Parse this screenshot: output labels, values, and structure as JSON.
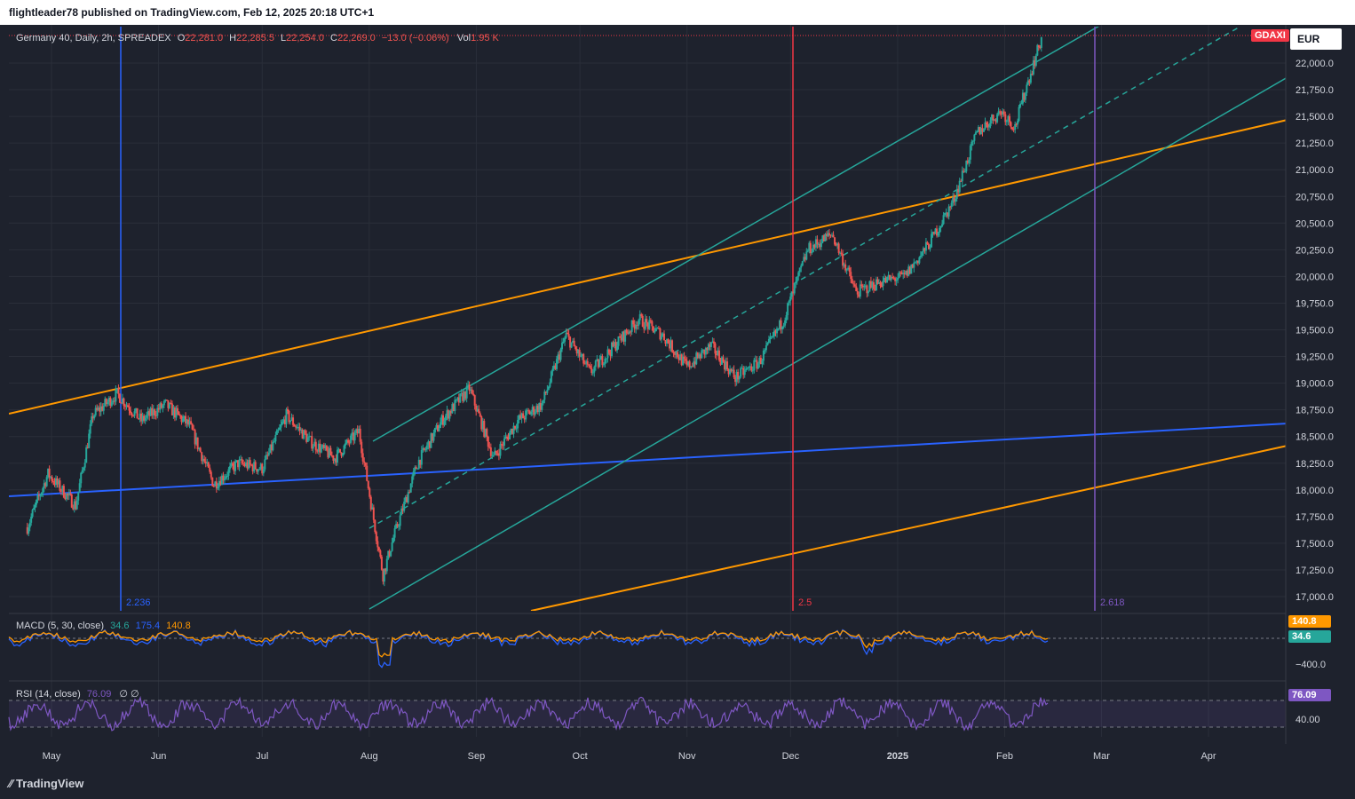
{
  "header": {
    "attribution": "flightleader78 published on TradingView.com, Feb 12, 2025 20:18 UTC+1"
  },
  "footer": {
    "brand": "TradingView"
  },
  "legend": {
    "symbol": "Germany 40, Daily, 2h, SPREADEX",
    "o_label": "O",
    "o_value": "22,281.0",
    "h_label": "H",
    "h_value": "22,285.5",
    "l_label": "L",
    "l_value": "22,254.0",
    "c_label": "C",
    "c_value": "22,269.0",
    "change": "−13.0 (−0.06%)",
    "vol_label": "Vol",
    "vol_value": "1.95 K"
  },
  "ticker_badge": "GDAXI",
  "currency_button": "EUR",
  "fib_labels": [
    "2.236",
    "2.5",
    "2.618"
  ],
  "macd": {
    "title": "MACD (5, 30, close)",
    "v1": "34.6",
    "v2": "175.4",
    "v3": "140.8",
    "badge_a": "140.8",
    "badge_b": "34.6",
    "scale_label": "−400.0"
  },
  "rsi": {
    "title": "RSI (14, close)",
    "value": "76.09",
    "extra": "∅ ∅",
    "badge": "76.09",
    "scale_label": "40.00"
  },
  "colors": {
    "background": "#1e222d",
    "up": "#26a69a",
    "down": "#ef5350",
    "channel": "#26a69a",
    "orange": "#ff9800",
    "blue": "#2962ff",
    "red_line": "#f23645",
    "purple": "#7e57c2"
  },
  "chart_data": {
    "type": "candlestick",
    "title": "Germany 40, Daily, 2h, SPREADEX",
    "y_ticks": [
      "22,000.0",
      "21,750.0",
      "21,500.0",
      "21,250.0",
      "21,000.0",
      "20,750.0",
      "20,500.0",
      "20,250.0",
      "20,000.0",
      "19,750.0",
      "19,500.0",
      "19,250.0",
      "19,000.0",
      "18,750.0",
      "18,500.0",
      "18,250.0",
      "18,000.0",
      "17,750.0",
      "17,500.0",
      "17,250.0",
      "17,000.0"
    ],
    "x_ticks": [
      "May",
      "Jun",
      "Jul",
      "Aug",
      "Sep",
      "Oct",
      "Nov",
      "Dec",
      "2025",
      "Feb",
      "Mar",
      "Apr"
    ],
    "price_path": [
      {
        "t": "Apr 24",
        "p": 17650
      },
      {
        "t": "Apr 30",
        "p": 18150
      },
      {
        "t": "May 8",
        "p": 17850
      },
      {
        "t": "May 13",
        "p": 18700
      },
      {
        "t": "May 20",
        "p": 18900
      },
      {
        "t": "May 27",
        "p": 18650
      },
      {
        "t": "Jun 3",
        "p": 18800
      },
      {
        "t": "Jun 10",
        "p": 18600
      },
      {
        "t": "Jun 17",
        "p": 18050
      },
      {
        "t": "Jun 24",
        "p": 18250
      },
      {
        "t": "Jul 1",
        "p": 18200
      },
      {
        "t": "Jul 8",
        "p": 18700
      },
      {
        "t": "Jul 15",
        "p": 18450
      },
      {
        "t": "Jul 22",
        "p": 18300
      },
      {
        "t": "Jul 29",
        "p": 18550
      },
      {
        "t": "Aug 5",
        "p": 17200
      },
      {
        "t": "Aug 8",
        "p": 17550
      },
      {
        "t": "Aug 15",
        "p": 18250
      },
      {
        "t": "Aug 22",
        "p": 18650
      },
      {
        "t": "Aug 30",
        "p": 18950
      },
      {
        "t": "Sep 6",
        "p": 18300
      },
      {
        "t": "Sep 13",
        "p": 18650
      },
      {
        "t": "Sep 20",
        "p": 18800
      },
      {
        "t": "Sep 27",
        "p": 19450
      },
      {
        "t": "Oct 4",
        "p": 19100
      },
      {
        "t": "Oct 11",
        "p": 19350
      },
      {
        "t": "Oct 18",
        "p": 19600
      },
      {
        "t": "Oct 25",
        "p": 19450
      },
      {
        "t": "Nov 1",
        "p": 19150
      },
      {
        "t": "Nov 8",
        "p": 19350
      },
      {
        "t": "Nov 15",
        "p": 19050
      },
      {
        "t": "Nov 22",
        "p": 19200
      },
      {
        "t": "Nov 29",
        "p": 19600
      },
      {
        "t": "Dec 6",
        "p": 20250
      },
      {
        "t": "Dec 13",
        "p": 20400
      },
      {
        "t": "Dec 20",
        "p": 19850
      },
      {
        "t": "Dec 27",
        "p": 19950
      },
      {
        "t": "Jan 3",
        "p": 20000
      },
      {
        "t": "Jan 10",
        "p": 20300
      },
      {
        "t": "Jan 17",
        "p": 20700
      },
      {
        "t": "Jan 24",
        "p": 21350
      },
      {
        "t": "Jan 31",
        "p": 21550
      },
      {
        "t": "Feb 4",
        "p": 21400
      },
      {
        "t": "Feb 7",
        "p": 21750
      },
      {
        "t": "Feb 12",
        "p": 22269
      }
    ]
  }
}
